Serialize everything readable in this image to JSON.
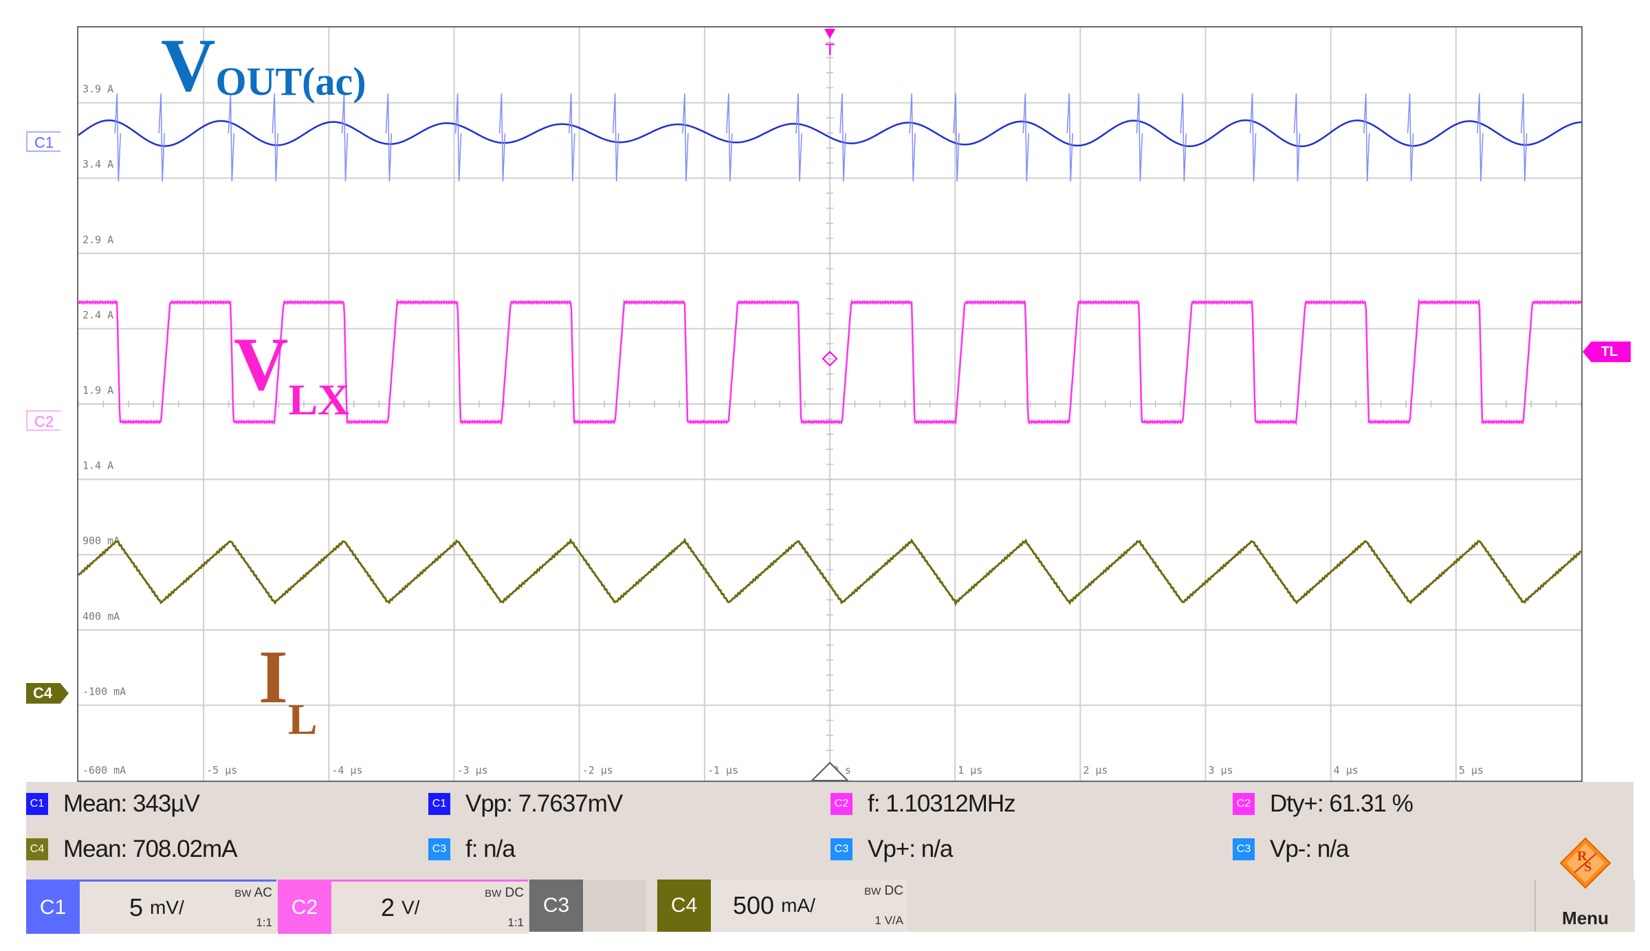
{
  "annotations": {
    "vout_main": "V",
    "vout_sub": "OUT(ac)",
    "vlx_main": "V",
    "vlx_sub": "LX",
    "il_main": "I",
    "il_sub": "L"
  },
  "markers": {
    "c1": "C1",
    "c2": "C2",
    "c4": "C4",
    "trigger_level": "TL",
    "trigger": "T"
  },
  "y_ticks": [
    "3.9 A",
    "3.4 A",
    "2.9 A",
    "2.4 A",
    "1.9 A",
    "1.4 A",
    "900 mA",
    "400 mA",
    "-100 mA",
    "-600 mA"
  ],
  "x_ticks": [
    "-5 µs",
    "-4 µs",
    "-3 µs",
    "-2 µs",
    "-1 µs",
    "0 s",
    "1 µs",
    "2 µs",
    "3 µs",
    "4 µs",
    "5 µs"
  ],
  "measurements": {
    "row1": [
      {
        "badge": "C1",
        "color": "#1a1aff",
        "text": "Mean: 343µV"
      },
      {
        "badge": "C1",
        "color": "#1a1aff",
        "text": "Vpp: 7.7637mV"
      },
      {
        "badge": "C2",
        "color": "#ff33ff",
        "text": "f: 1.10312MHz"
      },
      {
        "badge": "C2",
        "color": "#ff33ff",
        "text": "Dty+: 61.31 %"
      }
    ],
    "row2": [
      {
        "badge": "C4",
        "color": "#77771a",
        "text": "Mean: 708.02mA"
      },
      {
        "badge": "C3",
        "color": "#1e90ff",
        "text": "f: n/a"
      },
      {
        "badge": "C3",
        "color": "#1e90ff",
        "text": "Vp+: n/a"
      },
      {
        "badge": "C3",
        "color": "#1e90ff",
        "text": "Vp-: n/a"
      }
    ]
  },
  "channels": [
    {
      "label": "C1",
      "scale_num": "5",
      "scale_unit": "mV/",
      "bw": "AC",
      "coupling": "1:1"
    },
    {
      "label": "C2",
      "scale_num": "2",
      "scale_unit": "V/",
      "bw": "DC",
      "coupling": "1:1"
    },
    {
      "label": "C3"
    },
    {
      "label": "C4",
      "scale_num": "500",
      "scale_unit": "mA/",
      "bw": "DC",
      "coupling": "1 V/A"
    }
  ],
  "bw_prefix": "BW",
  "menu_label": "Menu",
  "colors": {
    "c1": "#1f2fd6",
    "c2": "#ff33ee",
    "c4": "#6f6a10",
    "vout_text": "#0d6fc0",
    "vlx_text": "#ff20d0",
    "il_text": "#a85a25"
  },
  "waveforms": {
    "period_us": 0.9065,
    "vlx_duty": 0.6131
  }
}
